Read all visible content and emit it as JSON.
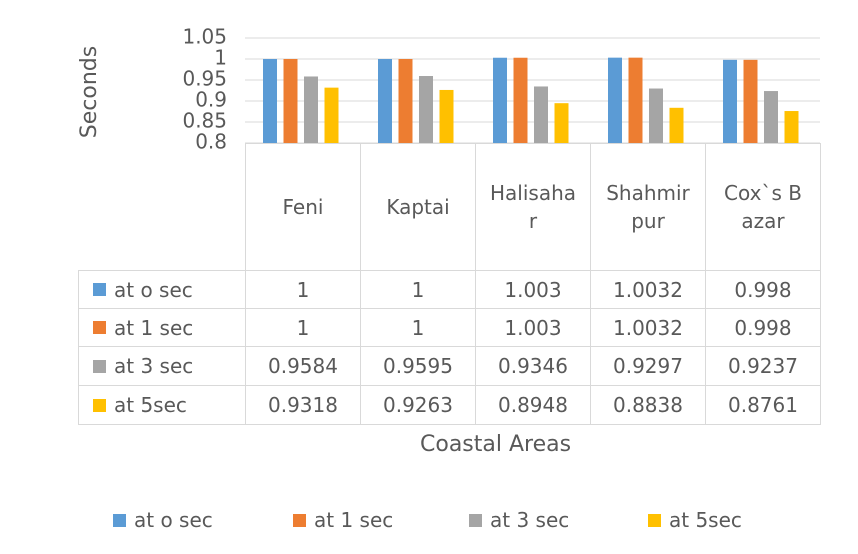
{
  "chart_data": {
    "type": "bar",
    "y_label": "Seconds",
    "x_label": "Coastal Areas",
    "categories": [
      "Feni",
      "Kaptai",
      "Halisahar",
      "Shahmirpur",
      "Cox`s Bazar"
    ],
    "series": [
      {
        "name": "at o sec",
        "color": "#5b9bd5",
        "values": [
          1,
          1,
          1.003,
          1.0032,
          0.998
        ]
      },
      {
        "name": "at 1 sec",
        "color": "#ed7d31",
        "values": [
          1,
          1,
          1.003,
          1.0032,
          0.998
        ]
      },
      {
        "name": "at 3 sec",
        "color": "#a5a5a5",
        "values": [
          0.9584,
          0.9595,
          0.9346,
          0.9297,
          0.9237
        ]
      },
      {
        "name": "at 5sec",
        "color": "#ffc000",
        "values": [
          0.9318,
          0.9263,
          0.8948,
          0.8838,
          0.8761
        ]
      }
    ],
    "ylim": [
      0.8,
      1.05
    ],
    "yticks": [
      0.8,
      0.85,
      0.9,
      0.95,
      1,
      1.05
    ],
    "grid": true,
    "legend": "bottom"
  }
}
